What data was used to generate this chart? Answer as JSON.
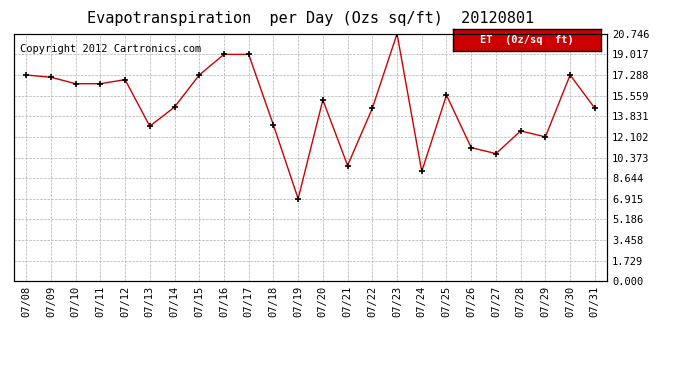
{
  "title": "Evapotranspiration  per Day (Ozs sq/ft)  20120801",
  "copyright": "Copyright 2012 Cartronics.com",
  "legend_label": "ET  (0z/sq  ft)",
  "dates": [
    "07/08",
    "07/09",
    "07/10",
    "07/11",
    "07/12",
    "07/13",
    "07/14",
    "07/15",
    "07/16",
    "07/17",
    "07/18",
    "07/19",
    "07/20",
    "07/21",
    "07/22",
    "07/23",
    "07/24",
    "07/25",
    "07/26",
    "07/27",
    "07/28",
    "07/29",
    "07/30",
    "07/31"
  ],
  "values": [
    17.288,
    17.1,
    16.559,
    16.559,
    16.9,
    13.0,
    14.6,
    17.288,
    19.017,
    19.017,
    13.1,
    6.915,
    15.2,
    9.7,
    14.5,
    20.746,
    9.2,
    15.6,
    11.2,
    10.7,
    12.6,
    12.102,
    17.288,
    14.5
  ],
  "yticks": [
    0.0,
    1.729,
    3.458,
    5.186,
    6.915,
    8.644,
    10.373,
    12.102,
    13.831,
    15.559,
    17.288,
    19.017,
    20.746
  ],
  "line_color": "#cc0000",
  "marker_color": "#000000",
  "background_color": "#ffffff",
  "grid_color": "#b0b0b0",
  "legend_bg": "#cc0000",
  "legend_text_color": "#ffffff",
  "title_fontsize": 11,
  "tick_fontsize": 7.5,
  "copyright_fontsize": 7.5
}
